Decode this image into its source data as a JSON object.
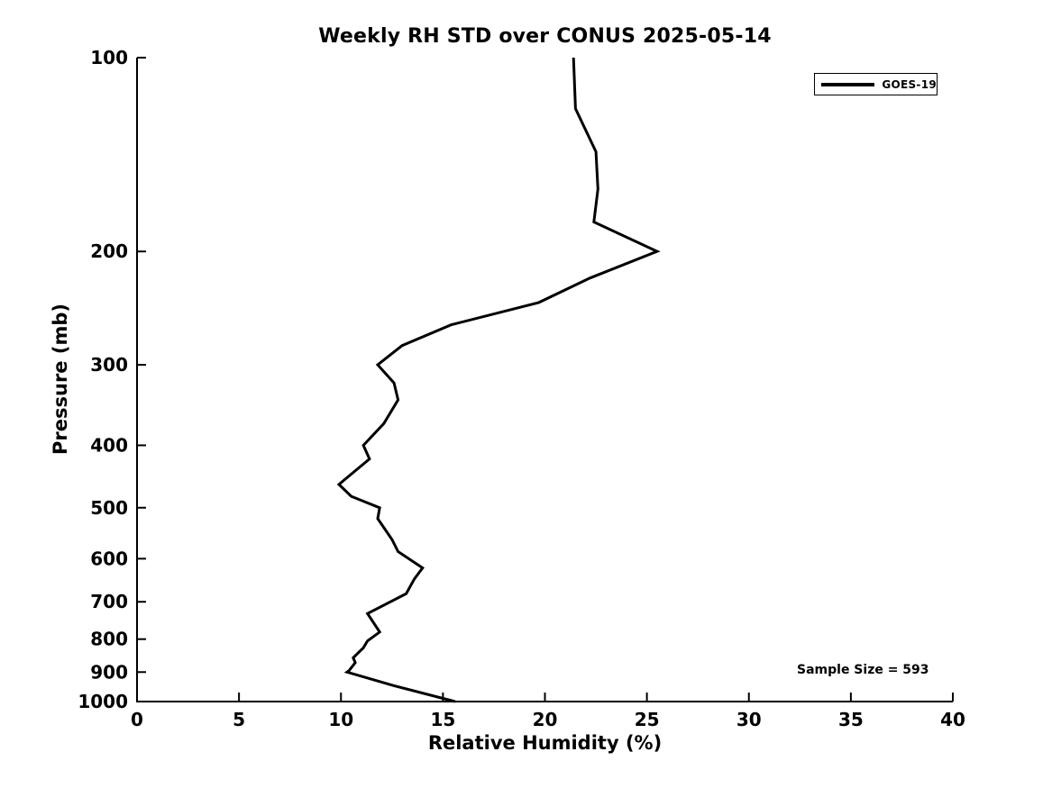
{
  "chart_data": {
    "type": "line",
    "title": "Weekly RH STD over CONUS 2025-05-14",
    "xlabel": "Relative Humidity (%)",
    "ylabel": "Pressure (mb)",
    "xlim": [
      0,
      40
    ],
    "ylim": [
      100,
      1000
    ],
    "yscale": "log",
    "y_inverted": true,
    "grid": false,
    "box": "left-bottom-only",
    "tick_direction": "in",
    "xticks": [
      0,
      5,
      10,
      15,
      20,
      25,
      30,
      35,
      40
    ],
    "yticks": [
      100,
      200,
      300,
      400,
      500,
      600,
      700,
      800,
      900,
      1000
    ],
    "legend_position": "top-right",
    "annotation": "Sample Size = 593",
    "line_color": "#000000",
    "background_color": "#ffffff",
    "series": [
      {
        "name": "GOES-19",
        "color": "#000000",
        "pressure_mb": [
          100,
          120,
          140,
          160,
          180,
          200,
          220,
          240,
          260,
          280,
          300,
          320,
          340,
          370,
          400,
          420,
          460,
          480,
          500,
          520,
          560,
          585,
          620,
          645,
          680,
          730,
          780,
          805,
          825,
          855,
          870,
          895,
          900,
          945,
          1000
        ],
        "values": [
          21.4,
          21.5,
          22.5,
          22.6,
          22.4,
          25.5,
          22.2,
          19.7,
          15.4,
          13.0,
          11.8,
          12.6,
          12.8,
          12.1,
          11.1,
          11.4,
          9.9,
          10.5,
          11.9,
          11.8,
          12.5,
          12.8,
          14.0,
          13.6,
          13.2,
          11.3,
          11.9,
          11.3,
          11.1,
          10.6,
          10.7,
          10.4,
          10.3,
          12.6,
          15.6
        ]
      }
    ]
  }
}
